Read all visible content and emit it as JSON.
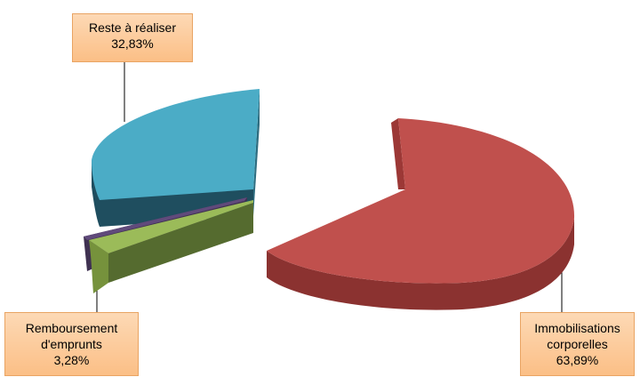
{
  "chart_data": {
    "type": "pie",
    "style": "3d-exploded",
    "slices": [
      {
        "name": "Immobilisations corporelles",
        "value": 63.89,
        "label_lines": [
          "Immobilisations",
          "corporelles"
        ],
        "value_text": "63,89%",
        "color": "#c0504d",
        "side_color": "#8b3230"
      },
      {
        "name": "Remboursement d'emprunts",
        "value": 3.28,
        "label_lines": [
          "Remboursement",
          "d'emprunts"
        ],
        "value_text": "3,28%",
        "color": "#9bbb59",
        "side_color": "#556b2f"
      },
      {
        "name": "Reste à réaliser",
        "value": 32.83,
        "label_lines": [
          "Reste à réaliser"
        ],
        "value_text": "32,83%",
        "color": "#4bacc6",
        "side_color": "#1f4e5f"
      }
    ],
    "extra_sliver": {
      "color": "#604a7b",
      "side_color": "#3f3151"
    },
    "label_box_color": "#fbc58f",
    "legend": "none"
  }
}
